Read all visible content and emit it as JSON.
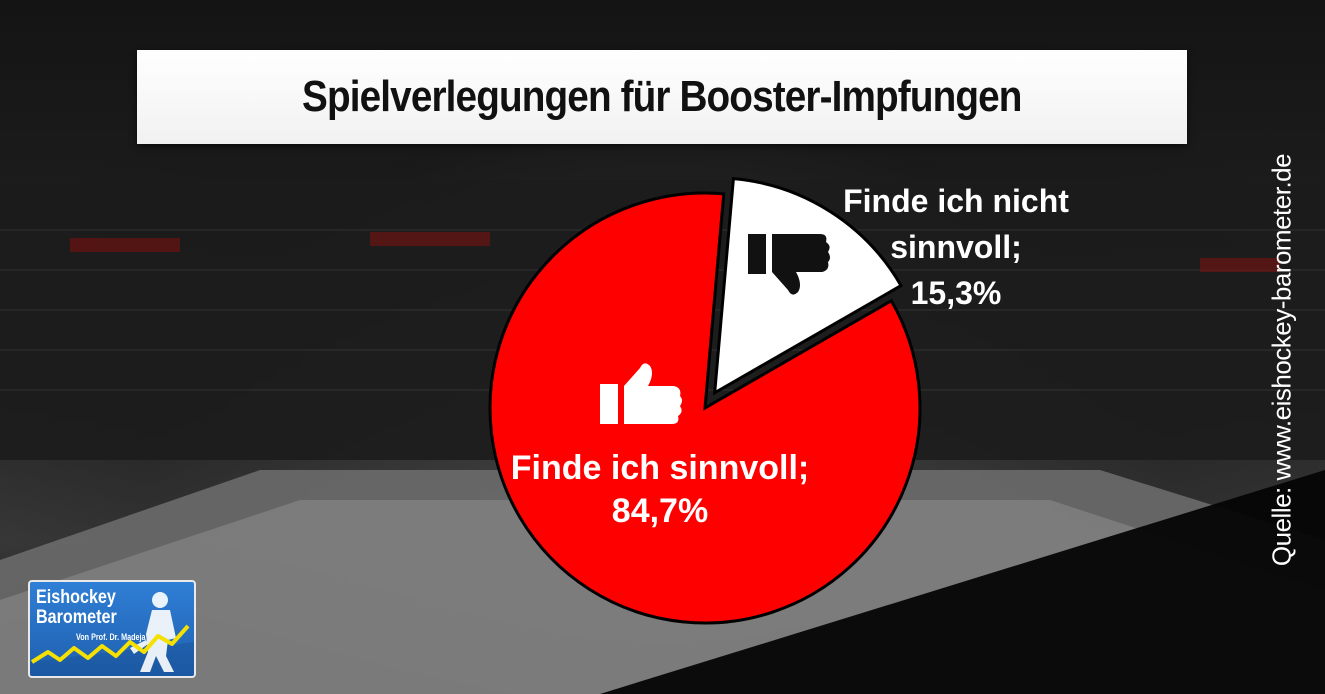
{
  "title": "Spielverlegungen für Booster-Impfungen",
  "source": "Quelle: www.eishockey-barometer.de",
  "colors": {
    "sinnvoll": "#ff0000",
    "nicht_sinnvoll": "#ffffff",
    "title_banner": "#ffffff"
  },
  "icons": {
    "sinnvoll": "thumbs-up-icon",
    "nicht_sinnvoll": "thumbs-down-icon"
  },
  "logo": {
    "line1": "Eishockey",
    "line2": "Barometer",
    "subtitle": "Von Prof. Dr. Madeja"
  },
  "chart_data": {
    "type": "pie",
    "title": "Spielverlegungen für Booster-Impfungen",
    "slices": [
      {
        "label": "Finde ich sinnvoll",
        "value": 84.7,
        "display": "84,7%",
        "color": "#ff0000",
        "exploded": false
      },
      {
        "label": "Finde ich nicht sinnvoll",
        "value": 15.3,
        "display": "15,3%",
        "color": "#ffffff",
        "exploded": true
      }
    ],
    "labels": {
      "sinnvoll_line1": "Finde ich sinnvoll;",
      "sinnvoll_line2": "84,7%",
      "nicht_line1": "Finde ich nicht",
      "nicht_line2": "sinnvoll;",
      "nicht_line3": "15,3%"
    }
  }
}
